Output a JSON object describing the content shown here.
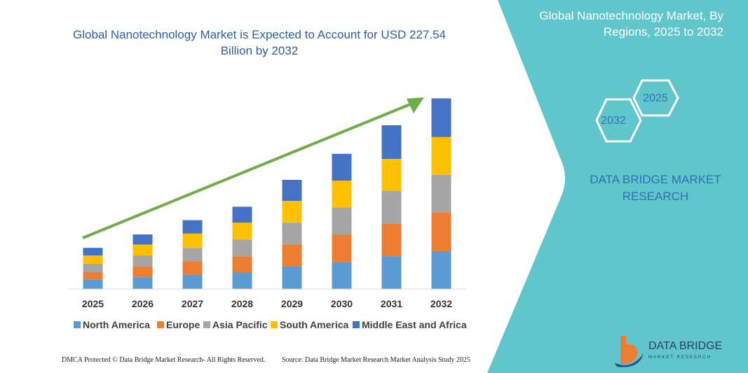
{
  "chart_data": {
    "type": "bar",
    "stacked": true,
    "title": "Global Nanotechnology Market is Expected to Account for USD 227.54 Billion by 2032",
    "categories": [
      "2025",
      "2026",
      "2027",
      "2028",
      "2029",
      "2030",
      "2031",
      "2032"
    ],
    "series": [
      {
        "name": "North America",
        "color": "#5b9bd5",
        "values": [
          11,
          14,
          17,
          20,
          27,
          32,
          39,
          45
        ]
      },
      {
        "name": "Europe",
        "color": "#ed7d31",
        "values": [
          9,
          13,
          16,
          19,
          26,
          33,
          39,
          46
        ]
      },
      {
        "name": "Asia Pacific",
        "color": "#a5a5a5",
        "values": [
          10,
          13,
          16,
          20,
          26,
          32,
          39,
          45
        ]
      },
      {
        "name": "South America",
        "color": "#ffc000",
        "values": [
          10,
          13,
          17,
          20,
          26,
          32,
          38,
          45
        ]
      },
      {
        "name": "Middle East and Africa",
        "color": "#4472c4",
        "values": [
          9,
          12,
          16,
          19,
          25,
          32,
          40,
          46
        ]
      }
    ],
    "ylim": [
      0,
      240
    ],
    "grid": false
  },
  "panel": {
    "title": "Global Nanotechnology Market, By Regions, 2025 to 2032",
    "hexagons": [
      "2025",
      "2032"
    ],
    "brand": "DATA BRIDGE MARKET RESEARCH"
  },
  "logo": {
    "name": "DATA BRIDGE",
    "tagline": "MARKET RESEARCH"
  },
  "footer": {
    "left": "DMCA Protected © Data Bridge Market Research- All Rights Reserved.",
    "right": "Source: Data Bridge Market Research Market Analysis Study 2025"
  }
}
